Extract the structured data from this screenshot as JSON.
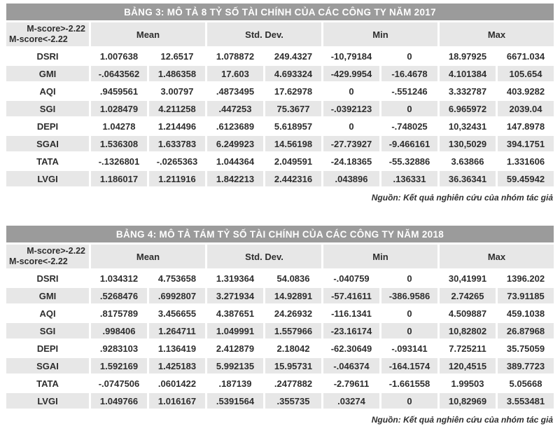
{
  "colors": {
    "title_bar_bg": "#9b9b9b",
    "title_bar_text": "#ffffff",
    "shaded_cell_bg": "#e7e7e7",
    "text": "#2e2e2e"
  },
  "corner": {
    "line1": "M-score>-2.22",
    "line2": "M-score<-2.22"
  },
  "col_headers": [
    "Mean",
    "Std. Dev.",
    "Min",
    "Max"
  ],
  "tables": [
    {
      "title": "BẢNG 3: MÔ TẢ 8 TỶ SỐ TÀI CHÍNH CỦA CÁC CÔNG TY NĂM 2017",
      "rows": [
        {
          "label": "DSRI",
          "values": [
            "1.007638",
            "12.6517",
            "1.078872",
            "249.4327",
            "-10,79184",
            "0",
            "18.97925",
            "6671.034"
          ]
        },
        {
          "label": "GMI",
          "values": [
            "-.0643562",
            "1.486358",
            "17.603",
            "4.693324",
            "-429.9954",
            "-16.4678",
            "4.101384",
            "105.654"
          ]
        },
        {
          "label": "AQI",
          "values": [
            ".9459561",
            "3.00797",
            ".4873495",
            "17.62978",
            "0",
            "-.551246",
            "3.332787",
            "403.9282"
          ]
        },
        {
          "label": "SGI",
          "values": [
            "1.028479",
            "4.211258",
            ".447253",
            "75.3677",
            "-.0392123",
            "0",
            "6.965972",
            "2039.04"
          ]
        },
        {
          "label": "DEPI",
          "values": [
            "1.04278",
            "1.214496",
            ".6123689",
            "5.618957",
            "0",
            "-.748025",
            "10,32431",
            "147.8978"
          ]
        },
        {
          "label": "SGAI",
          "values": [
            "1.536308",
            "1.633783",
            "6.249923",
            "14.56198",
            "-27.73927",
            "-9.466161",
            "130,5029",
            "394.1751"
          ]
        },
        {
          "label": "TATA",
          "values": [
            "-.1326801",
            "-.0265363",
            "1.044364",
            "2.049591",
            "-24.18365",
            "-55.32886",
            "3.63866",
            "1.331606"
          ]
        },
        {
          "label": "LVGI",
          "values": [
            "1.186017",
            "1.211916",
            "1.842213",
            "2.442316",
            ".043896",
            ".136331",
            "36.36341",
            "59.45942"
          ]
        }
      ],
      "source": "Nguồn: Kết quả nghiên cứu của nhóm tác giả"
    },
    {
      "title": "BẢNG 4: MÔ TẢ TÁM TỶ SỐ TÀI CHÍNH CỦA CÁC CÔNG TY NĂM 2018",
      "rows": [
        {
          "label": "DSRI",
          "values": [
            "1.034312",
            "4.753658",
            "1.319364",
            "54.0836",
            "-.040759",
            "0",
            "30,41991",
            "1396.202"
          ]
        },
        {
          "label": "GMI",
          "values": [
            ".5268476",
            ".6992807",
            "3.271934",
            "14.92891",
            "-57.41611",
            "-386.9586",
            "2.74265",
            "73.91185"
          ]
        },
        {
          "label": "AQI",
          "values": [
            ".8175789",
            "3.456655",
            "4.387651",
            "24.26932",
            "-116.1341",
            "0",
            "4.509887",
            "459.1038"
          ]
        },
        {
          "label": "SGI",
          "values": [
            ".998406",
            "1.264711",
            "1.049991",
            "1.557966",
            "-23.16174",
            "0",
            "10,82802",
            "26.87968"
          ]
        },
        {
          "label": "DEPI",
          "values": [
            ".9283103",
            "1.136419",
            "2.412879",
            "2.18042",
            "-62.30649",
            "-.093141",
            "7.725211",
            "35.75059"
          ]
        },
        {
          "label": "SGAI",
          "values": [
            "1.592169",
            "1.425183",
            "5.992135",
            "15.95731",
            "-.046374",
            "-164.1574",
            "120,4515",
            "389.7723"
          ]
        },
        {
          "label": "TATA",
          "values": [
            "-.0747506",
            ".0601422",
            ".187139",
            ".2477882",
            "-2.79611",
            "-1.661558",
            "1.99503",
            "5.05668"
          ]
        },
        {
          "label": "LVGI",
          "values": [
            "1.049766",
            "1.016167",
            ".5391564",
            ".355735",
            ".03274",
            "0",
            "10,82969",
            "3.553481"
          ]
        }
      ],
      "source": "Nguồn: Kết quả nghiên cứu của nhóm tác giả"
    }
  ]
}
